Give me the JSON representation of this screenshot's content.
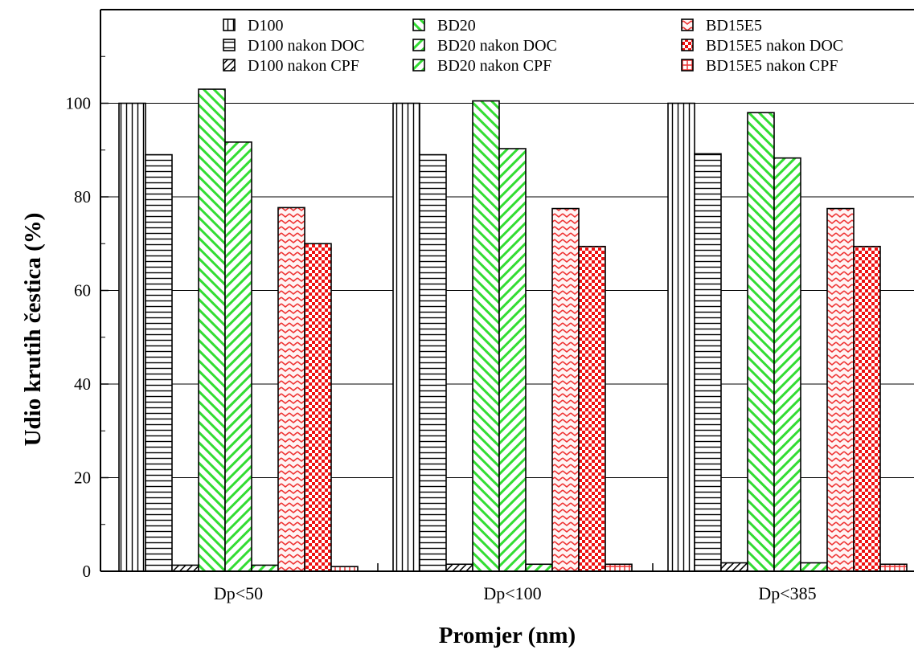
{
  "chart_data": {
    "type": "bar",
    "title": "",
    "xlabel": "Promjer  (nm)",
    "ylabel": "Udio krutih čestica  (%)",
    "ylim": [
      0,
      120
    ],
    "yticks": [
      0,
      20,
      40,
      60,
      80,
      100
    ],
    "grid": "horizontal",
    "legend_position": "top",
    "categories": [
      "Dp<50",
      "Dp<100",
      "Dp<385"
    ],
    "series": [
      {
        "name": "D100",
        "color": "#ffffff",
        "pattern": "vertical-lines",
        "values": [
          100,
          100,
          100
        ]
      },
      {
        "name": "D100 nakon DOC",
        "color": "#ffffff",
        "pattern": "horizontal-lines",
        "values": [
          89,
          89,
          89.2
        ]
      },
      {
        "name": "D100 nakon CPF",
        "color": "#ffffff",
        "pattern": "diagonal-lines",
        "values": [
          1.3,
          1.5,
          1.8
        ]
      },
      {
        "name": "BD20",
        "color": "#33dd33",
        "pattern": "diagonal-lines",
        "values": [
          103,
          100.5,
          98
        ]
      },
      {
        "name": "BD20 nakon DOC",
        "color": "#33dd33",
        "pattern": "diagonal-lines",
        "values": [
          91.7,
          90.3,
          88.3
        ]
      },
      {
        "name": "BD20  nakon CPF",
        "color": "#33dd33",
        "pattern": "diagonal-lines",
        "values": [
          1.3,
          1.5,
          1.8
        ]
      },
      {
        "name": "BD15E5",
        "color": "#ee3333",
        "pattern": "zigzag",
        "values": [
          77.7,
          77.5,
          77.5
        ]
      },
      {
        "name": "BD15E5 nakon DOC",
        "color": "#ee1111",
        "pattern": "checker",
        "values": [
          70,
          69.4,
          69.4
        ]
      },
      {
        "name": "BD15E5 nakon CPF",
        "color": "#ee3333",
        "pattern": "grid",
        "values": [
          1.0,
          1.5,
          1.5
        ]
      }
    ]
  }
}
